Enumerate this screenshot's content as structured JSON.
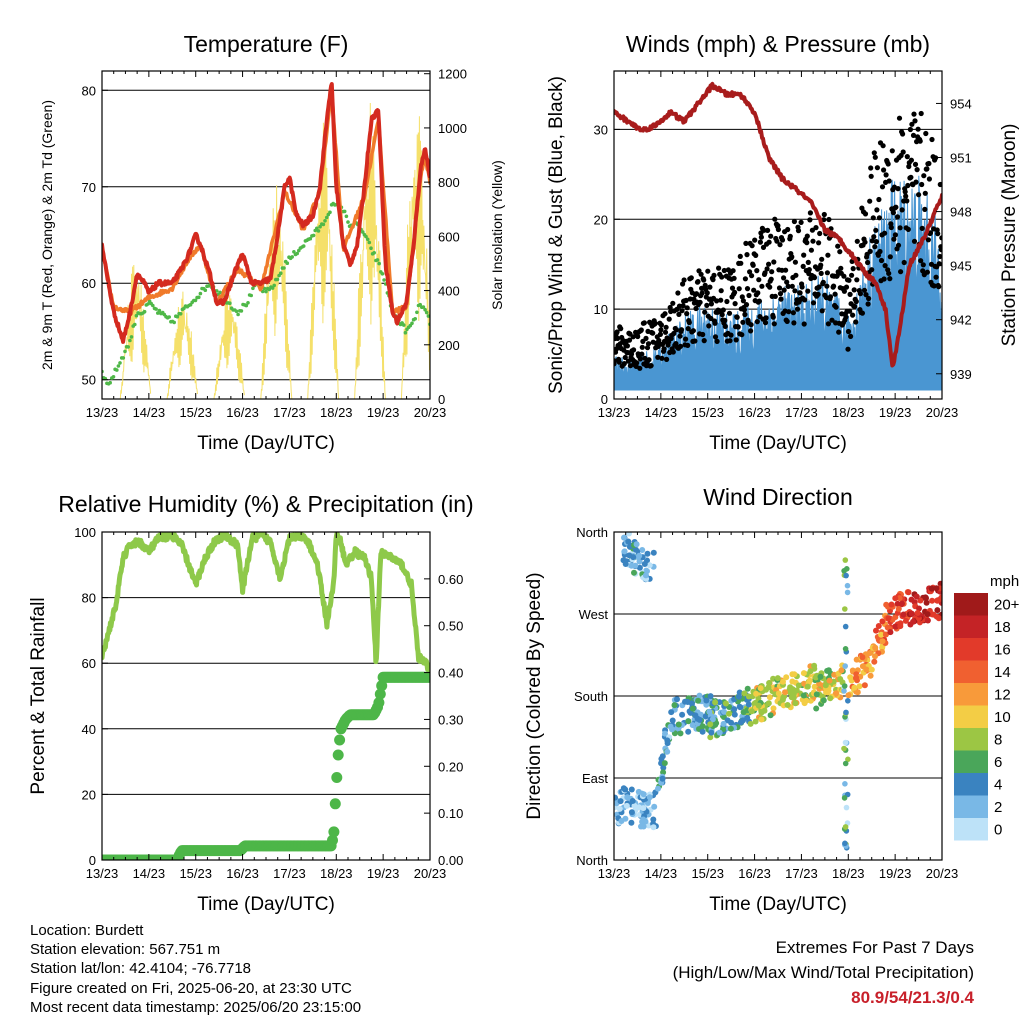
{
  "colors": {
    "temp_2m": "#d42a1f",
    "temp_9m": "#f07a2a",
    "dewpoint": "#4fb848",
    "solar": "#f5e06a",
    "wind_sonic": "#4a96d2",
    "wind_gust": "#000000",
    "pressure": "#a81c1c",
    "humidity": "#8ec94a",
    "precip": "#4db648"
  },
  "chart_data": [
    {
      "type": "line",
      "title": "Temperature (F)",
      "xlabel": "Time (Day/UTC)",
      "ylabel": "2m & 9m T (Red, Orange) & 2m Td (Green)",
      "y2label": "Solar Insolation (Yellow)",
      "x_ticks": [
        "13/23",
        "14/23",
        "15/23",
        "16/23",
        "17/23",
        "18/23",
        "19/23",
        "20/23"
      ],
      "xlim": [
        0,
        7
      ],
      "ylim": [
        48,
        82
      ],
      "y_ticks": [
        50,
        60,
        70,
        80
      ],
      "y2lim": [
        0,
        1210
      ],
      "y2_ticks": [
        0,
        200,
        400,
        600,
        800,
        1000,
        1200
      ],
      "grid": true,
      "series": [
        {
          "key": "t2m",
          "color_key": "temp_2m",
          "x": [
            0.0,
            0.1,
            0.25,
            0.45,
            0.6,
            0.75,
            0.9,
            1.0,
            1.2,
            1.5,
            1.7,
            1.85,
            2.0,
            2.1,
            2.3,
            2.45,
            2.6,
            2.75,
            2.9,
            3.0,
            3.2,
            3.4,
            3.6,
            3.75,
            3.9,
            4.0,
            4.15,
            4.3,
            4.5,
            4.65,
            4.8,
            4.9,
            5.0,
            5.15,
            5.3,
            5.45,
            5.6,
            5.75,
            5.9,
            6.05,
            6.2,
            6.3,
            6.5,
            6.65,
            6.8,
            6.9,
            7.0
          ],
          "values": [
            64,
            61,
            57,
            54,
            57,
            61,
            60,
            59,
            60,
            60,
            61.5,
            63,
            65,
            64,
            61,
            58,
            58,
            60,
            62,
            63,
            60,
            60,
            60.5,
            65,
            70,
            71,
            67,
            66,
            67,
            70,
            77,
            81,
            70,
            64,
            62,
            64,
            70,
            77,
            78,
            62,
            57,
            56,
            58,
            64,
            72,
            74,
            71
          ]
        },
        {
          "key": "t9m",
          "color_key": "temp_9m",
          "x": [
            0.0,
            0.25,
            0.6,
            1.0,
            1.5,
            1.85,
            2.1,
            2.45,
            2.9,
            3.4,
            3.9,
            4.3,
            4.65,
            4.9,
            5.15,
            5.6,
            5.9,
            6.2,
            6.5,
            6.8,
            6.9,
            7.0
          ],
          "values": [
            63.5,
            57.5,
            57,
            58.5,
            59.5,
            62.5,
            64,
            58,
            61.5,
            59.5,
            69.5,
            65.5,
            69.5,
            80,
            63.5,
            69,
            77,
            57,
            57.5,
            71,
            73,
            70.5
          ]
        },
        {
          "key": "td2m",
          "color_key": "dewpoint",
          "x": [
            0.0,
            0.1,
            0.2,
            0.4,
            0.6,
            0.75,
            0.9,
            1.0,
            1.2,
            1.5,
            1.7,
            1.9,
            2.1,
            2.3,
            2.5,
            2.7,
            2.9,
            3.1,
            3.3,
            3.5,
            3.7,
            3.9,
            4.1,
            4.3,
            4.5,
            4.7,
            4.9,
            5.1,
            5.3,
            5.5,
            5.7,
            5.9,
            6.05,
            6.2,
            6.35,
            6.5,
            6.65,
            6.8,
            6.9,
            7.0
          ],
          "values": [
            51,
            49.5,
            50,
            52,
            54,
            57,
            57,
            58,
            57,
            56,
            57,
            58,
            59,
            60,
            59,
            58,
            57,
            58,
            60,
            59,
            60,
            62,
            63,
            64,
            65,
            66,
            68,
            68,
            66,
            66,
            64,
            62,
            60,
            57,
            56,
            55,
            56,
            58,
            57,
            56
          ]
        }
      ],
      "solar_peaks": [
        {
          "day": 0.72,
          "peak": 530
        },
        {
          "day": 1.72,
          "peak": 430
        },
        {
          "day": 2.72,
          "peak": 420
        },
        {
          "day": 3.72,
          "peak": 850
        },
        {
          "day": 4.72,
          "peak": 1070
        },
        {
          "day": 5.72,
          "peak": 1100
        },
        {
          "day": 6.72,
          "peak": 1140
        }
      ]
    },
    {
      "type": "line",
      "title": "Winds (mph) & Pressure (mb)",
      "xlabel": "Time (Day/UTC)",
      "ylabel": "Sonic/Prop Wind & Gust (Blue, Black)",
      "y2label": "Station Pressure (Maroon)",
      "x_ticks": [
        "13/23",
        "14/23",
        "15/23",
        "16/23",
        "17/23",
        "18/23",
        "19/23",
        "20/23"
      ],
      "xlim": [
        0,
        7
      ],
      "ylim": [
        0,
        36.5
      ],
      "y_ticks": [
        0,
        10,
        20,
        30
      ],
      "y2lim": [
        937.6,
        955.8
      ],
      "y2_ticks": [
        939,
        942,
        945,
        948,
        951,
        954
      ],
      "grid": true,
      "series": [
        {
          "key": "wind",
          "color_key": "wind_sonic",
          "x": [
            0,
            0.5,
            1,
            1.5,
            2,
            2.5,
            3,
            3.5,
            4,
            4.5,
            5,
            5.5,
            6,
            6.5,
            7
          ],
          "values": [
            3,
            3,
            4,
            6,
            7,
            6,
            7,
            8,
            8,
            9,
            6,
            12,
            16,
            16,
            12
          ]
        },
        {
          "key": "gust",
          "color_key": "wind_gust",
          "x": [
            0,
            0.5,
            1,
            1.5,
            2,
            2.5,
            3,
            3.5,
            4,
            4.5,
            5,
            5.5,
            6,
            6.5,
            7
          ],
          "values": [
            6,
            6,
            7,
            10,
            11,
            11,
            14,
            15,
            15,
            16,
            10,
            20,
            24,
            24,
            20
          ]
        },
        {
          "key": "pressure",
          "color_key": "pressure",
          "x": [
            0,
            0.3,
            0.6,
            0.9,
            1.2,
            1.5,
            1.8,
            2.1,
            2.4,
            2.7,
            3.0,
            3.3,
            3.6,
            3.9,
            4.2,
            4.5,
            4.8,
            5.1,
            5.4,
            5.6,
            5.8,
            5.95,
            6.1,
            6.3,
            6.5,
            6.7,
            6.85,
            7.0
          ],
          "values": [
            953.5,
            953,
            952.5,
            952.8,
            953.5,
            953,
            954,
            955,
            954.5,
            954.5,
            953.5,
            951,
            949.8,
            949.2,
            948.5,
            947,
            946.5,
            945.5,
            944.5,
            944,
            942.5,
            939.3,
            941.5,
            945,
            946,
            947,
            948,
            948.8
          ]
        }
      ]
    },
    {
      "type": "line",
      "title": "Relative Humidity (%) & Precipitation (in)",
      "xlabel": "Time (Day/UTC)",
      "ylabel": "Percent & Total Rainfall",
      "x_ticks": [
        "13/23",
        "14/23",
        "15/23",
        "16/23",
        "17/23",
        "18/23",
        "19/23",
        "20/23"
      ],
      "xlim": [
        0,
        7
      ],
      "ylim": [
        0,
        100
      ],
      "y_ticks": [
        0,
        20,
        40,
        60,
        80,
        100
      ],
      "y2lim": [
        0,
        0.7
      ],
      "y2_ticks": [
        "0.00",
        "0.10",
        "0.20",
        "0.30",
        "0.40",
        "0.50",
        "0.60"
      ],
      "grid": true,
      "series": [
        {
          "key": "rh",
          "color_key": "humidity",
          "x": [
            0,
            0.15,
            0.3,
            0.45,
            0.6,
            0.8,
            1.0,
            1.2,
            1.5,
            1.7,
            1.85,
            2.0,
            2.2,
            2.4,
            2.6,
            2.9,
            3.0,
            3.2,
            3.4,
            3.6,
            3.8,
            4.0,
            4.2,
            4.4,
            4.6,
            4.8,
            4.95,
            5.0,
            5.1,
            5.2,
            5.4,
            5.6,
            5.75,
            5.85,
            5.95,
            6.0,
            6.1,
            6.2,
            6.4,
            6.6,
            6.75,
            6.9,
            7.0
          ],
          "values": [
            62,
            70,
            78,
            92,
            96,
            97,
            94,
            98,
            99,
            96,
            90,
            84,
            92,
            97,
            99,
            96,
            82,
            98,
            99,
            97,
            86,
            98,
            99,
            97,
            90,
            72,
            85,
            99,
            97,
            90,
            94,
            92,
            86,
            60,
            94,
            93,
            93,
            92,
            90,
            84,
            62,
            60,
            58
          ]
        },
        {
          "key": "precip",
          "color_key": "precip",
          "x": [
            0,
            1.6,
            1.7,
            2.95,
            3.05,
            4.9,
            4.95,
            5.0,
            5.05,
            5.1,
            5.15,
            5.2,
            5.3,
            5.5,
            5.8,
            5.9,
            6.0,
            6.2,
            7.0
          ],
          "values": [
            0,
            0,
            0.02,
            0.02,
            0.03,
            0.03,
            0.06,
            0.16,
            0.24,
            0.28,
            0.29,
            0.3,
            0.31,
            0.31,
            0.31,
            0.33,
            0.39,
            0.39,
            0.39
          ]
        }
      ]
    },
    {
      "type": "scatter",
      "title": "Wind Direction",
      "xlabel": "Time (Day/UTC)",
      "ylabel": "Direction (Colored By Speed)",
      "x_ticks": [
        "13/23",
        "14/23",
        "15/23",
        "16/23",
        "17/23",
        "18/23",
        "19/23",
        "20/23"
      ],
      "xlim": [
        0,
        7
      ],
      "ylim": [
        0,
        360
      ],
      "y_ticks": [
        {
          "value": 0,
          "label": "North"
        },
        {
          "value": 90,
          "label": "East"
        },
        {
          "value": 180,
          "label": "South"
        },
        {
          "value": 270,
          "label": "West"
        },
        {
          "value": 360,
          "label": "North"
        }
      ],
      "grid": true,
      "legend": {
        "title": "mph",
        "placement": "right",
        "labels": [
          "20+",
          "18",
          "16",
          "14",
          "12",
          "10",
          "8",
          "6",
          "4",
          "2",
          "0"
        ],
        "colors": [
          "#a01a1a",
          "#c42326",
          "#e23a2a",
          "#f06030",
          "#f89a3a",
          "#f3cd45",
          "#9cc644",
          "#4aa65a",
          "#3a83c0",
          "#79b8e6",
          "#bde2f8"
        ]
      },
      "segments": [
        {
          "x0": 0.0,
          "x1": 0.9,
          "d0": 60,
          "d1": 55,
          "speed": 2
        },
        {
          "x0": 0.15,
          "x1": 0.85,
          "d0": 345,
          "d1": 320,
          "speed": 3
        },
        {
          "x0": 0.9,
          "x1": 1.2,
          "d0": 60,
          "d1": 160,
          "speed": 3
        },
        {
          "x0": 1.2,
          "x1": 2.2,
          "d0": 158,
          "d1": 162,
          "speed": 4
        },
        {
          "x0": 2.0,
          "x1": 2.9,
          "d0": 150,
          "d1": 170,
          "speed": 5
        },
        {
          "x0": 2.9,
          "x1": 3.6,
          "d0": 165,
          "d1": 185,
          "speed": 9
        },
        {
          "x0": 3.6,
          "x1": 4.3,
          "d0": 180,
          "d1": 195,
          "speed": 9
        },
        {
          "x0": 4.3,
          "x1": 4.9,
          "d0": 185,
          "d1": 200,
          "speed": 9
        },
        {
          "x0": 5.0,
          "x1": 5.5,
          "d0": 195,
          "d1": 215,
          "speed": 12
        },
        {
          "x0": 5.5,
          "x1": 5.8,
          "d0": 225,
          "d1": 250,
          "speed": 13
        },
        {
          "x0": 5.8,
          "x1": 6.3,
          "d0": 260,
          "d1": 280,
          "speed": 16
        },
        {
          "x0": 6.3,
          "x1": 7.0,
          "d0": 270,
          "d1": 285,
          "speed": 18
        }
      ],
      "vertical_bursts": [
        {
          "x": 4.95,
          "d_min": 10,
          "d_max": 340,
          "speed": 4
        }
      ]
    }
  ],
  "station": {
    "location": "Location: Burdett",
    "elevation": "Station elevation: 567.751 m",
    "latlon": "Station lat/lon: 42.4104; -76.7718",
    "created": "Figure created on Fri, 2025-06-20, at 23:30 UTC",
    "recent": "Most recent data timestamp: 2025/06/20 23:15:00"
  },
  "extremes": {
    "title": "Extremes For Past 7 Days",
    "subtitle": "(High/Low/Max Wind/Total Precipitation)",
    "values": "80.9/54/21.3/0.4"
  }
}
